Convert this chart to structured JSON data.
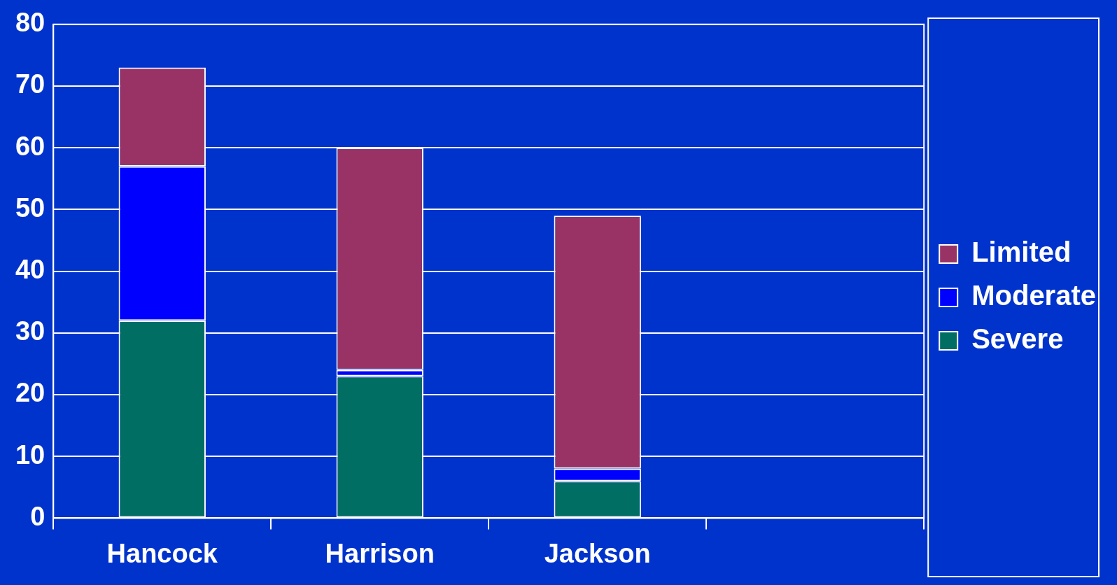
{
  "chart_data": {
    "type": "bar",
    "stacked": true,
    "categories": [
      "Hancock",
      "Harrison",
      "Jackson",
      null
    ],
    "series": [
      {
        "name": "Severe",
        "color": "#006e62",
        "values": [
          32,
          23,
          6,
          null
        ]
      },
      {
        "name": "Moderate",
        "color": "#0000ff",
        "values": [
          25,
          1,
          2,
          null
        ]
      },
      {
        "name": "Limited",
        "color": "#993366",
        "values": [
          16,
          36,
          41,
          null
        ]
      }
    ],
    "ylim": [
      0,
      80
    ],
    "yticks": [
      0,
      10,
      20,
      30,
      40,
      50,
      60,
      70,
      80
    ],
    "grid": "y",
    "legend": "right"
  }
}
